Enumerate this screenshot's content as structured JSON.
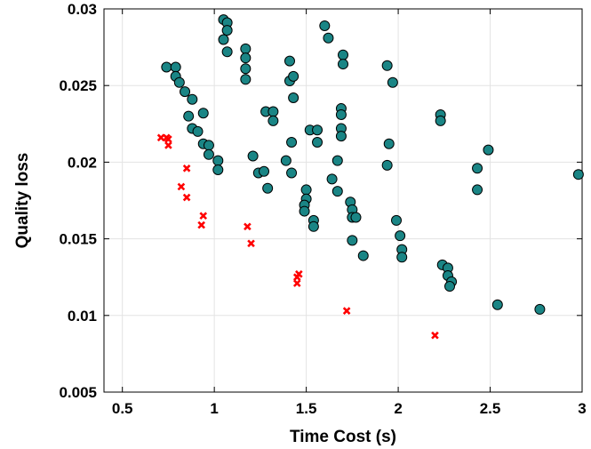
{
  "chart_data": {
    "type": "scatter",
    "title": "",
    "xlabel": "Time Cost (s)",
    "ylabel": "Quality loss",
    "xlim": [
      0.4,
      3.0
    ],
    "ylim": [
      0.005,
      0.03
    ],
    "grid": true,
    "x_ticks": [
      0.5,
      1,
      1.5,
      2,
      2.5,
      3
    ],
    "x_tick_labels": [
      "0.5",
      "1",
      "1.5",
      "2",
      "2.5",
      "3"
    ],
    "y_ticks": [
      0.005,
      0.01,
      0.015,
      0.02,
      0.025,
      0.03
    ],
    "y_tick_labels": [
      "0.005",
      "0.01",
      "0.015",
      "0.02",
      "0.025",
      "0.03"
    ],
    "series": [
      {
        "name": "teal circles",
        "marker": "circle",
        "color": "#1a8585",
        "edge_color": "#000000",
        "points": [
          [
            0.74,
            0.0262
          ],
          [
            0.79,
            0.0262
          ],
          [
            0.79,
            0.0256
          ],
          [
            0.81,
            0.0252
          ],
          [
            0.84,
            0.0246
          ],
          [
            0.86,
            0.023
          ],
          [
            0.88,
            0.0241
          ],
          [
            0.88,
            0.0222
          ],
          [
            0.91,
            0.022
          ],
          [
            0.94,
            0.0232
          ],
          [
            0.94,
            0.0212
          ],
          [
            0.97,
            0.0211
          ],
          [
            0.97,
            0.0205
          ],
          [
            1.02,
            0.0201
          ],
          [
            1.02,
            0.0195
          ],
          [
            1.05,
            0.0293
          ],
          [
            1.05,
            0.028
          ],
          [
            1.07,
            0.0291
          ],
          [
            1.07,
            0.0286
          ],
          [
            1.07,
            0.0272
          ],
          [
            1.17,
            0.0274
          ],
          [
            1.17,
            0.0268
          ],
          [
            1.17,
            0.0261
          ],
          [
            1.17,
            0.0254
          ],
          [
            1.21,
            0.0204
          ],
          [
            1.24,
            0.0193
          ],
          [
            1.27,
            0.0194
          ],
          [
            1.28,
            0.0233
          ],
          [
            1.29,
            0.0183
          ],
          [
            1.32,
            0.0233
          ],
          [
            1.32,
            0.0227
          ],
          [
            1.39,
            0.0201
          ],
          [
            1.41,
            0.0266
          ],
          [
            1.41,
            0.0253
          ],
          [
            1.43,
            0.0256
          ],
          [
            1.43,
            0.0242
          ],
          [
            1.42,
            0.0213
          ],
          [
            1.42,
            0.0193
          ],
          [
            1.52,
            0.0221
          ],
          [
            1.56,
            0.0221
          ],
          [
            1.56,
            0.0213
          ],
          [
            1.5,
            0.0182
          ],
          [
            1.5,
            0.0176
          ],
          [
            1.49,
            0.0172
          ],
          [
            1.49,
            0.0168
          ],
          [
            1.54,
            0.0162
          ],
          [
            1.54,
            0.0158
          ],
          [
            1.6,
            0.0289
          ],
          [
            1.62,
            0.0281
          ],
          [
            1.7,
            0.027
          ],
          [
            1.7,
            0.0264
          ],
          [
            1.69,
            0.0235
          ],
          [
            1.69,
            0.0231
          ],
          [
            1.69,
            0.0222
          ],
          [
            1.69,
            0.0217
          ],
          [
            1.67,
            0.0201
          ],
          [
            1.64,
            0.0189
          ],
          [
            1.67,
            0.0181
          ],
          [
            1.74,
            0.0174
          ],
          [
            1.75,
            0.0169
          ],
          [
            1.75,
            0.0164
          ],
          [
            1.77,
            0.0164
          ],
          [
            1.75,
            0.0149
          ],
          [
            1.81,
            0.0139
          ],
          [
            1.94,
            0.0263
          ],
          [
            1.97,
            0.0252
          ],
          [
            1.95,
            0.0212
          ],
          [
            1.94,
            0.0198
          ],
          [
            1.99,
            0.0162
          ],
          [
            2.01,
            0.0152
          ],
          [
            2.02,
            0.0143
          ],
          [
            2.02,
            0.0138
          ],
          [
            2.23,
            0.0231
          ],
          [
            2.23,
            0.0227
          ],
          [
            2.24,
            0.0133
          ],
          [
            2.27,
            0.0131
          ],
          [
            2.27,
            0.0126
          ],
          [
            2.29,
            0.0122
          ],
          [
            2.28,
            0.0119
          ],
          [
            2.43,
            0.0196
          ],
          [
            2.43,
            0.0182
          ],
          [
            2.49,
            0.0208
          ],
          [
            2.54,
            0.0107
          ],
          [
            2.77,
            0.0104
          ],
          [
            2.98,
            0.0192
          ]
        ]
      },
      {
        "name": "red crosses",
        "marker": "x",
        "color": "#ff0000",
        "points": [
          [
            0.71,
            0.0216
          ],
          [
            0.74,
            0.0216
          ],
          [
            0.75,
            0.0215
          ],
          [
            0.75,
            0.0211
          ],
          [
            0.85,
            0.0196
          ],
          [
            0.82,
            0.0184
          ],
          [
            0.85,
            0.0177
          ],
          [
            0.94,
            0.0165
          ],
          [
            0.93,
            0.0159
          ],
          [
            1.18,
            0.0158
          ],
          [
            1.2,
            0.0147
          ],
          [
            1.46,
            0.0127
          ],
          [
            1.45,
            0.0125
          ],
          [
            1.45,
            0.0121
          ],
          [
            1.72,
            0.0103
          ],
          [
            2.2,
            0.0087
          ]
        ]
      }
    ]
  }
}
